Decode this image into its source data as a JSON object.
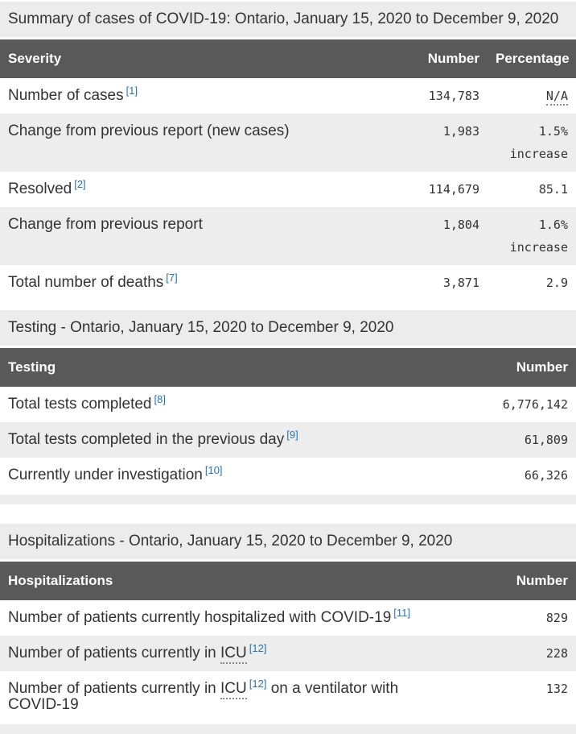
{
  "colors": {
    "header_bg": "#595959",
    "header_text": "#ffffff",
    "stripe_bg": "#ededed",
    "caption_bg": "#ececec",
    "body_text": "#333333",
    "footnote_link": "#2572b4"
  },
  "tables": [
    {
      "caption": "Summary of cases of COVID-19: Ontario, January 15, 2020 to December 9, 2020",
      "columns": [
        "Severity",
        "Number",
        "Percentage"
      ],
      "rows": [
        {
          "pre": "Number of cases",
          "fn": "[1]",
          "number": "134,783",
          "pct": "N/A"
        },
        {
          "pre": "Change from previous report (new cases)",
          "number": "1,983",
          "pct": "1.5% increase"
        },
        {
          "pre": "Resolved",
          "fn": "[2]",
          "number": "114,679",
          "pct": "85.1"
        },
        {
          "pre": "Change from previous report",
          "number": "1,804",
          "pct": "1.6% increase"
        },
        {
          "pre": "Total number of deaths",
          "fn": "[7]",
          "number": "3,871",
          "pct": "2.9"
        }
      ]
    },
    {
      "caption": "Testing - Ontario, January 15, 2020 to December 9, 2020",
      "columns": [
        "Testing",
        "Number"
      ],
      "rows": [
        {
          "pre": "Total tests completed",
          "fn": "[8]",
          "number": "6,776,142"
        },
        {
          "pre": "Total tests completed in the previous day",
          "fn": "[9]",
          "number": "61,809"
        },
        {
          "pre": "Currently under investigation",
          "fn": "[10]",
          "number": "66,326"
        }
      ]
    },
    {
      "caption": "Hospitalizations - Ontario, January 15, 2020 to December 9, 2020",
      "columns": [
        "Hospitalizations",
        "Number"
      ],
      "rows": [
        {
          "pre": "Number of patients currently hospitalized with COVID-19",
          "fn": "[11]",
          "number": "829"
        },
        {
          "pre": "Number of patients currently in ",
          "abbr": "ICU",
          "fn": "[12]",
          "number": "228"
        },
        {
          "pre": "Number of patients currently in ",
          "abbr": "ICU",
          "fn": "[12]",
          "post": " on a ventilator with COVID-19",
          "number": "132"
        }
      ]
    }
  ]
}
